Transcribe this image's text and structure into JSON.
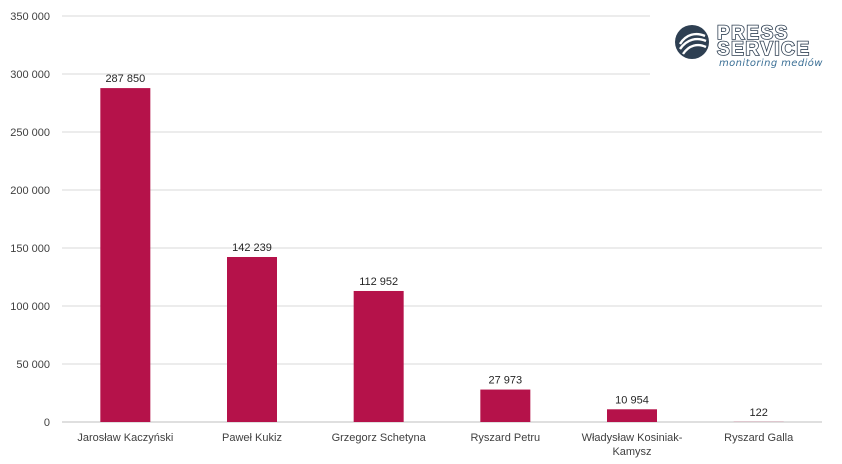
{
  "logo": {
    "word1": "PRESS",
    "word2": "SERVICE",
    "tagline": "monitoring mediów",
    "icon": "press-service-globe-logo",
    "colors": {
      "dark": "#2e3f52",
      "accent": "#3b6f95"
    }
  },
  "chart_data": {
    "type": "bar",
    "categories": [
      [
        "Jarosław Kaczyński"
      ],
      [
        "Paweł Kukiz"
      ],
      [
        "Grzegorz Schetyna"
      ],
      [
        "Ryszard Petru"
      ],
      [
        "Władysław Kosiniak-",
        "Kamysz"
      ],
      [
        "Ryszard Galla"
      ]
    ],
    "values": [
      287850,
      142239,
      112952,
      27973,
      10954,
      122
    ],
    "value_labels": [
      "287 850",
      "142 239",
      "112 952",
      "27 973",
      "10 954",
      "122"
    ],
    "title": "",
    "xlabel": "",
    "ylabel": "",
    "ylim": [
      0,
      350000
    ],
    "yticks": [
      0,
      50000,
      100000,
      150000,
      200000,
      250000,
      300000,
      350000
    ],
    "ytick_labels": [
      "0",
      "50 000",
      "100 000",
      "150 000",
      "200 000",
      "250 000",
      "300 000",
      "350 000"
    ],
    "grid": true,
    "legend": "none",
    "colors": {
      "bar": "#b5124a",
      "grid": "#d9d9d9",
      "text": "#404040"
    }
  }
}
